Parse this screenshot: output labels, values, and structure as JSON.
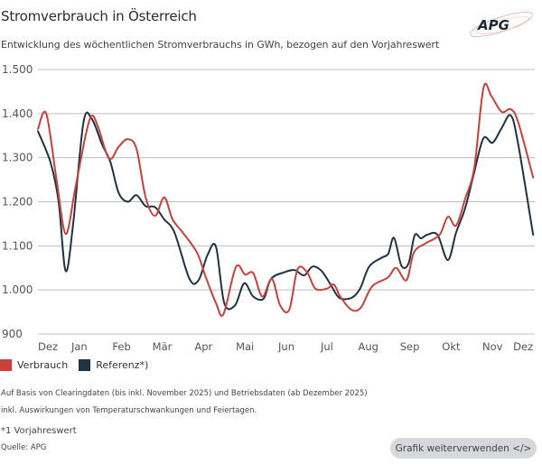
{
  "header": {
    "title": "Stromverbrauch in Österreich",
    "subtitle": "Entwicklung des wöchentlichen Stromverbrauchs in GWh, bezogen auf den Vorjahreswert",
    "logo_text": "APG"
  },
  "chart_data": {
    "type": "line",
    "title": "Stromverbrauch in Österreich",
    "subtitle": "Entwicklung des wöchentlichen Stromverbrauchs in GWh, bezogen auf den Vorjahreswert",
    "xlabel": "",
    "ylabel": "GWh",
    "ylim": [
      900,
      1500
    ],
    "yticks": [
      900,
      1000,
      1100,
      1200,
      1300,
      1400,
      1500
    ],
    "ytick_labels": [
      "900",
      "1.000",
      "1.100",
      "1.200",
      "1.300",
      "1.400",
      "1.500"
    ],
    "xlim": [
      0,
      12
    ],
    "x_unit": "months since start of December (prior year)",
    "xtick_labels": [
      "Dez",
      "Jan",
      "Feb",
      "Mär",
      "Apr",
      "Mai",
      "Jun",
      "Jul",
      "Aug",
      "Sep",
      "Okt",
      "Nov",
      "Dez"
    ],
    "xtick_positions": [
      0.24,
      1.0,
      2.02,
      3.0,
      4.0,
      5.0,
      6.0,
      6.98,
      7.98,
      8.98,
      9.98,
      10.98,
      11.72
    ],
    "grid": true,
    "legend_position": "bottom-left",
    "series": [
      {
        "name": "Verbrauch",
        "color": "#c8413a",
        "points": [
          [
            0.0,
            1365
          ],
          [
            0.2,
            1400
          ],
          [
            0.45,
            1250
          ],
          [
            0.67,
            1127
          ],
          [
            0.9,
            1230
          ],
          [
            1.15,
            1350
          ],
          [
            1.3,
            1395
          ],
          [
            1.45,
            1370
          ],
          [
            1.72,
            1298
          ],
          [
            1.95,
            1325
          ],
          [
            2.17,
            1342
          ],
          [
            2.38,
            1320
          ],
          [
            2.6,
            1210
          ],
          [
            2.83,
            1168
          ],
          [
            3.05,
            1210
          ],
          [
            3.25,
            1160
          ],
          [
            3.5,
            1130
          ],
          [
            3.84,
            1085
          ],
          [
            4.05,
            1030
          ],
          [
            4.3,
            970
          ],
          [
            4.48,
            945
          ],
          [
            4.78,
            1052
          ],
          [
            5.0,
            1035
          ],
          [
            5.2,
            1038
          ],
          [
            5.42,
            985
          ],
          [
            5.65,
            1025
          ],
          [
            5.85,
            965
          ],
          [
            6.07,
            955
          ],
          [
            6.27,
            1047
          ],
          [
            6.5,
            1040
          ],
          [
            6.7,
            1003
          ],
          [
            6.98,
            1003
          ],
          [
            7.15,
            1012
          ],
          [
            7.3,
            985
          ],
          [
            7.57,
            955
          ],
          [
            7.8,
            960
          ],
          [
            8.07,
            1008
          ],
          [
            8.45,
            1028
          ],
          [
            8.65,
            1050
          ],
          [
            8.9,
            1022
          ],
          [
            9.08,
            1085
          ],
          [
            9.35,
            1105
          ],
          [
            9.7,
            1125
          ],
          [
            9.9,
            1166
          ],
          [
            10.1,
            1146
          ],
          [
            10.32,
            1207
          ],
          [
            10.54,
            1278
          ],
          [
            10.76,
            1458
          ],
          [
            10.95,
            1440
          ],
          [
            11.2,
            1404
          ],
          [
            11.42,
            1410
          ],
          [
            11.6,
            1380
          ],
          [
            11.96,
            1255
          ]
        ]
      },
      {
        "name": "Referenz*)",
        "color": "#1f3344",
        "points": [
          [
            0.0,
            1360
          ],
          [
            0.3,
            1290
          ],
          [
            0.5,
            1200
          ],
          [
            0.67,
            1043
          ],
          [
            0.85,
            1150
          ],
          [
            1.1,
            1380
          ],
          [
            1.3,
            1388
          ],
          [
            1.55,
            1330
          ],
          [
            1.75,
            1290
          ],
          [
            1.95,
            1220
          ],
          [
            2.17,
            1200
          ],
          [
            2.38,
            1215
          ],
          [
            2.6,
            1190
          ],
          [
            2.83,
            1188
          ],
          [
            3.05,
            1160
          ],
          [
            3.3,
            1130
          ],
          [
            3.66,
            1025
          ],
          [
            3.88,
            1022
          ],
          [
            4.1,
            1080
          ],
          [
            4.3,
            1098
          ],
          [
            4.5,
            970
          ],
          [
            4.76,
            965
          ],
          [
            4.98,
            1015
          ],
          [
            5.2,
            985
          ],
          [
            5.45,
            980
          ],
          [
            5.63,
            1025
          ],
          [
            5.95,
            1040
          ],
          [
            6.2,
            1045
          ],
          [
            6.43,
            1033
          ],
          [
            6.63,
            1053
          ],
          [
            6.85,
            1043
          ],
          [
            7.07,
            1012
          ],
          [
            7.28,
            982
          ],
          [
            7.57,
            982
          ],
          [
            7.78,
            1003
          ],
          [
            8.0,
            1053
          ],
          [
            8.3,
            1073
          ],
          [
            8.46,
            1082
          ],
          [
            8.6,
            1118
          ],
          [
            8.78,
            1055
          ],
          [
            8.95,
            1060
          ],
          [
            9.1,
            1124
          ],
          [
            9.25,
            1117
          ],
          [
            9.4,
            1125
          ],
          [
            9.65,
            1125
          ],
          [
            9.9,
            1068
          ],
          [
            10.1,
            1130
          ],
          [
            10.32,
            1186
          ],
          [
            10.54,
            1268
          ],
          [
            10.76,
            1344
          ],
          [
            10.98,
            1334
          ],
          [
            11.2,
            1367
          ],
          [
            11.42,
            1396
          ],
          [
            11.6,
            1330
          ],
          [
            11.96,
            1125
          ]
        ]
      }
    ]
  },
  "legend": {
    "items": [
      {
        "label": "Verbrauch",
        "color": "#c8413a"
      },
      {
        "label": "Referenz*)",
        "color": "#1f3344"
      }
    ]
  },
  "footer": {
    "note1": "Auf Basis von Clearingdaten (bis inkl. November 2025) und Betriebsdaten (ab Dezember 2025)",
    "note2": "inkl. Auswirkungen von Temperaturschwankungen und Feiertagen.",
    "footnote": "*1 Vorjahreswert",
    "source": "Quelle: APG",
    "reuse_button": "Grafik weiterverwenden </>"
  }
}
